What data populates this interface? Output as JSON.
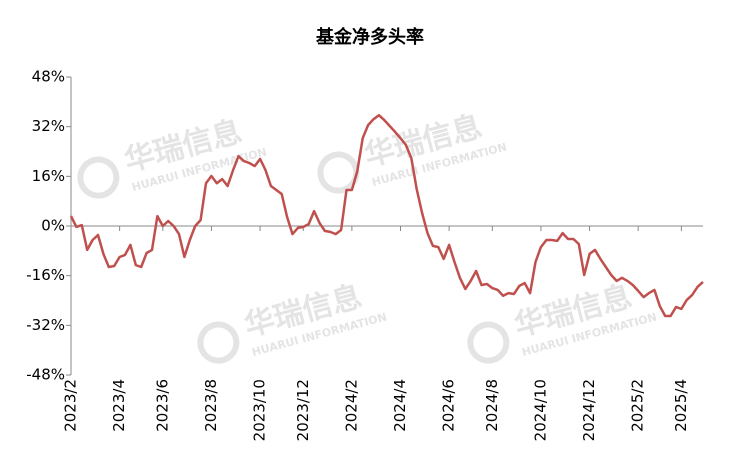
{
  "chart_data": {
    "type": "line",
    "title": "基金净多头率",
    "watermark": {
      "name": "华瑞信息",
      "subtitle": "HUARUI INFORMATION"
    },
    "categories": [
      "2023/2",
      null,
      null,
      null,
      null,
      null,
      null,
      null,
      null,
      "2023/4",
      null,
      null,
      null,
      null,
      null,
      null,
      null,
      "2023/6",
      null,
      null,
      null,
      null,
      null,
      null,
      null,
      null,
      "2023/8",
      null,
      null,
      null,
      null,
      null,
      null,
      null,
      null,
      "2023/10",
      null,
      null,
      null,
      null,
      null,
      null,
      null,
      "2023/12",
      null,
      null,
      null,
      null,
      null,
      null,
      null,
      null,
      "2024/2",
      null,
      null,
      null,
      null,
      null,
      null,
      null,
      null,
      "2024/4",
      null,
      null,
      null,
      null,
      null,
      null,
      null,
      null,
      "2024/6",
      null,
      null,
      null,
      null,
      null,
      null,
      null,
      "2024/8",
      null,
      null,
      null,
      null,
      null,
      null,
      null,
      null,
      "2024/10",
      null,
      null,
      null,
      null,
      null,
      null,
      null,
      null,
      "2024/12",
      null,
      null,
      null,
      null,
      null,
      null,
      null,
      null,
      "2025/2",
      null,
      null,
      null,
      null,
      null,
      null,
      null,
      "2025/4",
      null,
      null,
      null,
      null
    ],
    "series": [
      {
        "name": "基金净多头率",
        "color": "#c0504d",
        "values": [
          3.2,
          -0.3,
          0.3,
          -7.7,
          -4.5,
          -2.9,
          -9,
          -13.2,
          -12.9,
          -10,
          -9.3,
          -6.1,
          -12.6,
          -13.2,
          -8.7,
          -7.7,
          3.2,
          0,
          1.6,
          0,
          -2.6,
          -10,
          -4.5,
          0,
          1.9,
          13.8,
          16.1,
          13.8,
          15.1,
          12.9,
          18,
          22.5,
          20.9,
          20.3,
          19.3,
          21.6,
          18,
          12.9,
          11.6,
          10.3,
          2.9,
          -2.6,
          -0.6,
          -0.3,
          0.6,
          4.8,
          1,
          -1.6,
          -1.9,
          -2.6,
          -1.3,
          11.6,
          11.6,
          17.7,
          28.3,
          32.5,
          34.4,
          35.7,
          34.1,
          32.2,
          30.3,
          28.3,
          26.1,
          21.9,
          11.9,
          4.2,
          -2.3,
          -6.4,
          -6.8,
          -10.6,
          -6.1,
          -11.6,
          -16.7,
          -20.3,
          -17.7,
          -14.5,
          -19,
          -18.7,
          -20,
          -20.6,
          -22.5,
          -21.6,
          -21.9,
          -19.3,
          -18.4,
          -21.6,
          -11.6,
          -6.8,
          -4.5,
          -4.5,
          -4.8,
          -2.3,
          -4.2,
          -4.2,
          -5.8,
          -15.8,
          -9,
          -7.7,
          -10.6,
          -13.2,
          -15.8,
          -17.7,
          -16.7,
          -17.7,
          -19,
          -20.9,
          -22.9,
          -21.6,
          -20.6,
          -25.8,
          -29,
          -29,
          -26.1,
          -26.7,
          -23.8,
          -22.2,
          -19.6,
          -18
        ]
      }
    ],
    "ylim": [
      -48,
      48
    ],
    "yticks": [
      {
        "value": -48,
        "label": "-48%"
      },
      {
        "value": -32,
        "label": "-32%"
      },
      {
        "value": -16,
        "label": "-16%"
      },
      {
        "value": 0,
        "label": "0%"
      },
      {
        "value": 16,
        "label": "16%"
      },
      {
        "value": 32,
        "label": "32%"
      },
      {
        "value": 48,
        "label": "48%"
      }
    ],
    "grid": false
  }
}
